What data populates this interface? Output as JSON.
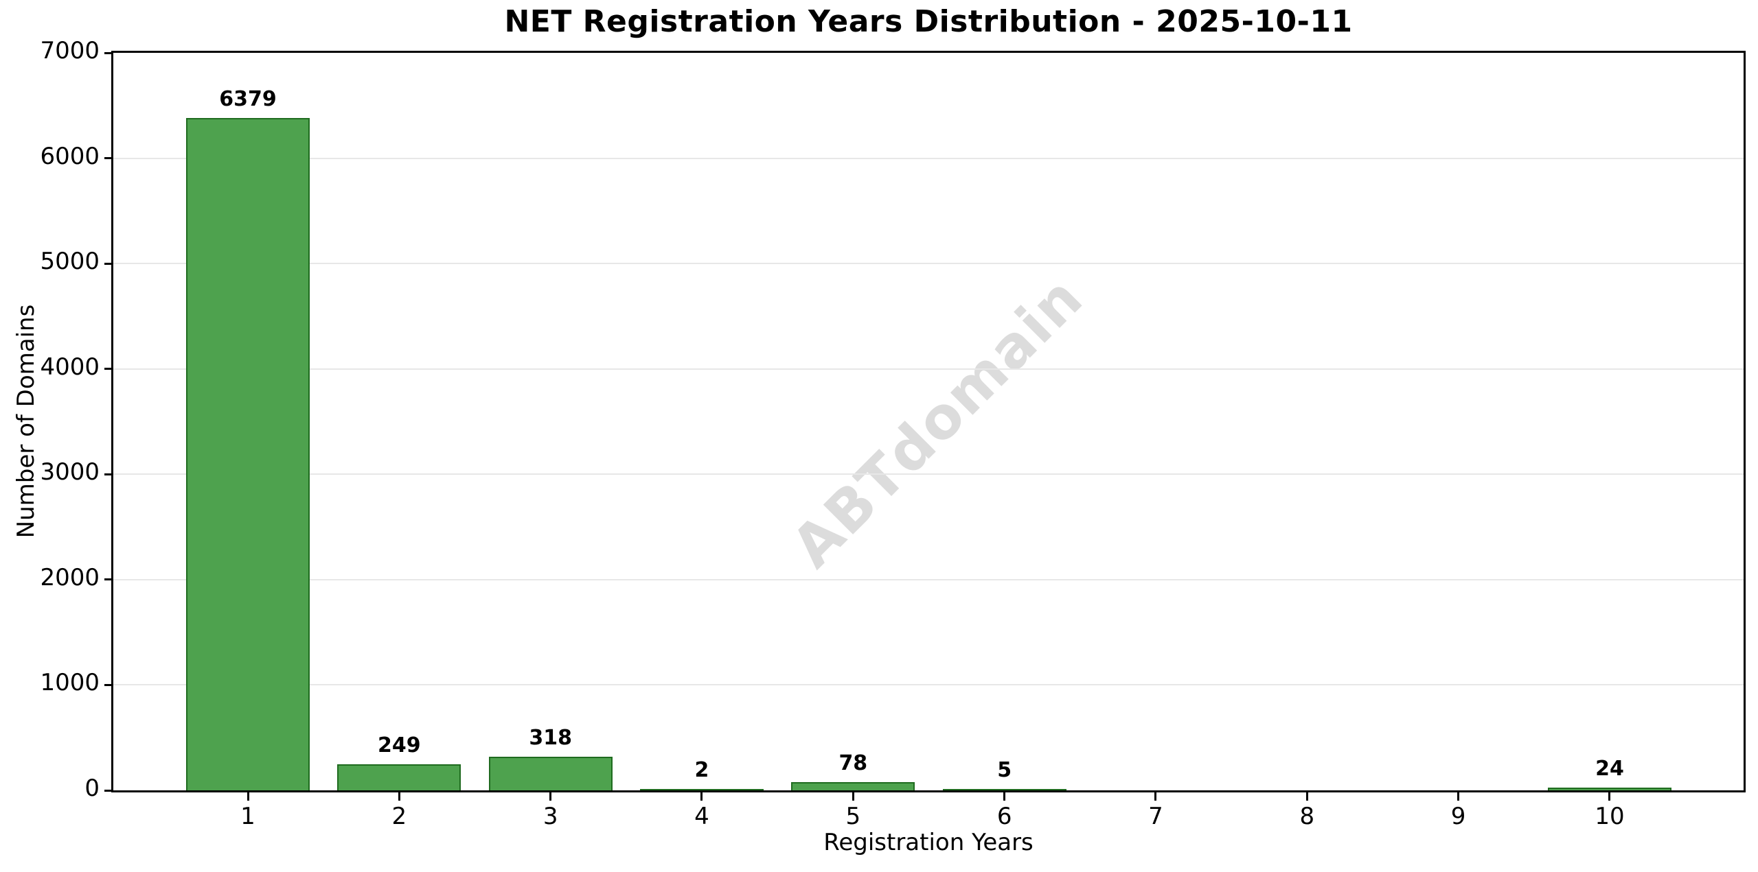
{
  "chart_data": {
    "type": "bar",
    "title": "NET Registration Years Distribution - 2025-10-11",
    "xlabel": "Registration Years",
    "ylabel": "Number of Domains",
    "categories": [
      "1",
      "2",
      "3",
      "4",
      "5",
      "6",
      "7",
      "8",
      "9",
      "10"
    ],
    "values": [
      6379,
      249,
      318,
      2,
      78,
      5,
      0,
      0,
      0,
      24
    ],
    "bar_labels": [
      "6379",
      "249",
      "318",
      "2",
      "78",
      "5",
      "",
      "",
      "",
      "24"
    ],
    "ylim": [
      0,
      7000
    ],
    "yticks": [
      0,
      1000,
      2000,
      3000,
      4000,
      5000,
      6000,
      7000
    ],
    "grid": "horizontal",
    "legend": "none",
    "watermark": "ABTdomain",
    "colors": {
      "bar_fill": "#4ea24e",
      "bar_edge": "#1f6b1f",
      "grid": "#e7e7e7",
      "axis": "#000000",
      "text": "#000000",
      "watermark": "#dcdcdc",
      "background": "#ffffff"
    }
  }
}
